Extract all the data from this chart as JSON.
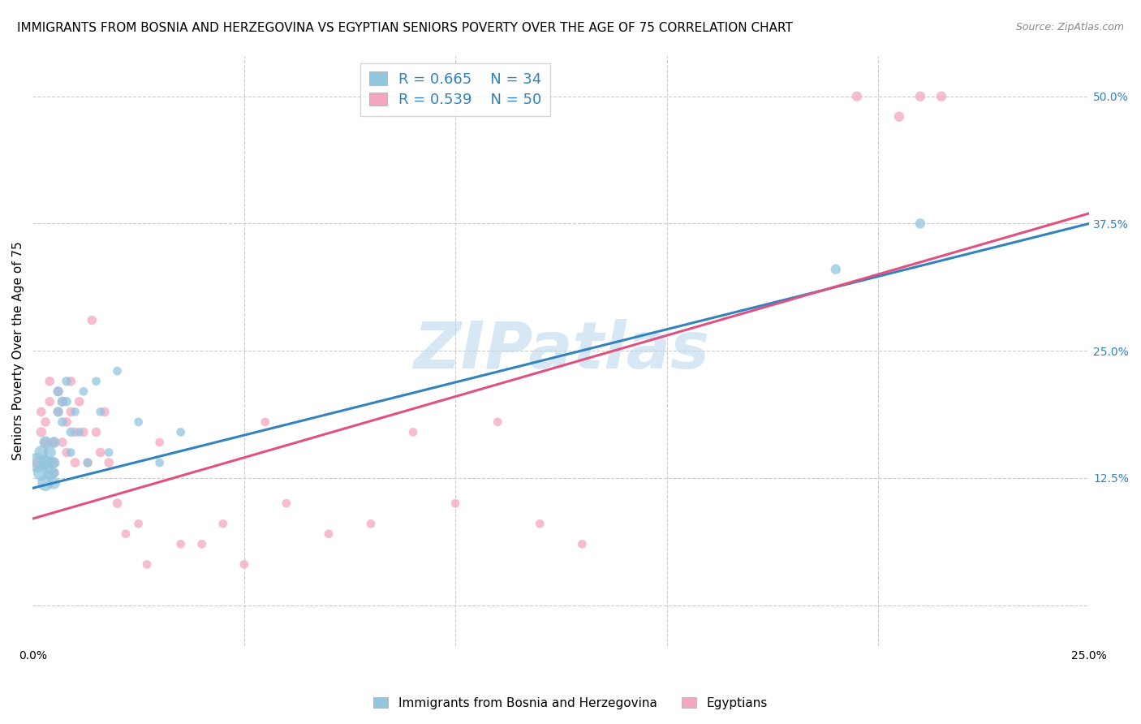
{
  "title": "IMMIGRANTS FROM BOSNIA AND HERZEGOVINA VS EGYPTIAN SENIORS POVERTY OVER THE AGE OF 75 CORRELATION CHART",
  "source": "Source: ZipAtlas.com",
  "ylabel": "Seniors Poverty Over the Age of 75",
  "y_ticks": [
    0.0,
    0.125,
    0.25,
    0.375,
    0.5
  ],
  "y_tick_labels": [
    "",
    "12.5%",
    "25.0%",
    "37.5%",
    "50.0%"
  ],
  "xlim": [
    0.0,
    0.25
  ],
  "ylim": [
    -0.04,
    0.54
  ],
  "blue_color": "#92c5de",
  "pink_color": "#f4a6c0",
  "blue_line_color": "#3182bd",
  "pink_line_color": "#e05080",
  "legend_label1": "Immigrants from Bosnia and Herzegovina",
  "legend_label2": "Egyptians",
  "watermark": "ZIPatlas",
  "blue_scatter_x": [
    0.001,
    0.002,
    0.002,
    0.003,
    0.003,
    0.003,
    0.004,
    0.004,
    0.004,
    0.005,
    0.005,
    0.005,
    0.005,
    0.006,
    0.006,
    0.007,
    0.007,
    0.008,
    0.008,
    0.009,
    0.009,
    0.01,
    0.011,
    0.012,
    0.013,
    0.015,
    0.016,
    0.018,
    0.02,
    0.025,
    0.03,
    0.035,
    0.19,
    0.21
  ],
  "blue_scatter_y": [
    0.14,
    0.13,
    0.15,
    0.12,
    0.14,
    0.16,
    0.13,
    0.15,
    0.14,
    0.12,
    0.14,
    0.16,
    0.13,
    0.21,
    0.19,
    0.2,
    0.18,
    0.2,
    0.22,
    0.17,
    0.15,
    0.19,
    0.17,
    0.21,
    0.14,
    0.22,
    0.19,
    0.15,
    0.23,
    0.18,
    0.14,
    0.17,
    0.33,
    0.375
  ],
  "blue_sizes": [
    300,
    200,
    150,
    200,
    150,
    120,
    150,
    120,
    100,
    120,
    100,
    100,
    80,
    80,
    80,
    80,
    70,
    70,
    70,
    70,
    60,
    60,
    60,
    60,
    60,
    60,
    60,
    60,
    60,
    60,
    60,
    60,
    80,
    80
  ],
  "pink_scatter_x": [
    0.001,
    0.002,
    0.002,
    0.003,
    0.003,
    0.004,
    0.004,
    0.005,
    0.005,
    0.005,
    0.006,
    0.006,
    0.007,
    0.007,
    0.008,
    0.008,
    0.009,
    0.009,
    0.01,
    0.01,
    0.011,
    0.012,
    0.013,
    0.014,
    0.015,
    0.016,
    0.017,
    0.018,
    0.02,
    0.022,
    0.025,
    0.027,
    0.03,
    0.035,
    0.04,
    0.045,
    0.05,
    0.055,
    0.06,
    0.07,
    0.08,
    0.09,
    0.1,
    0.11,
    0.12,
    0.13,
    0.195,
    0.205,
    0.21,
    0.215
  ],
  "pink_scatter_y": [
    0.14,
    0.17,
    0.19,
    0.16,
    0.18,
    0.2,
    0.22,
    0.13,
    0.16,
    0.14,
    0.21,
    0.19,
    0.2,
    0.16,
    0.18,
    0.15,
    0.19,
    0.22,
    0.14,
    0.17,
    0.2,
    0.17,
    0.14,
    0.28,
    0.17,
    0.15,
    0.19,
    0.14,
    0.1,
    0.07,
    0.08,
    0.04,
    0.16,
    0.06,
    0.06,
    0.08,
    0.04,
    0.18,
    0.1,
    0.07,
    0.08,
    0.17,
    0.1,
    0.18,
    0.08,
    0.06,
    0.5,
    0.48,
    0.5,
    0.5
  ],
  "pink_sizes": [
    80,
    80,
    70,
    80,
    70,
    70,
    70,
    80,
    70,
    80,
    70,
    70,
    70,
    70,
    70,
    70,
    70,
    70,
    70,
    70,
    70,
    70,
    70,
    70,
    70,
    70,
    70,
    70,
    70,
    60,
    60,
    60,
    60,
    60,
    60,
    60,
    60,
    60,
    60,
    60,
    60,
    60,
    60,
    60,
    60,
    60,
    80,
    80,
    80,
    80
  ],
  "blue_line_x0": 0.0,
  "blue_line_y0": 0.115,
  "blue_line_x1": 0.25,
  "blue_line_y1": 0.375,
  "pink_line_x0": 0.0,
  "pink_line_y0": 0.085,
  "pink_line_x1": 0.25,
  "pink_line_y1": 0.385,
  "title_fontsize": 11,
  "axis_label_fontsize": 11,
  "tick_fontsize": 10,
  "legend_fontsize": 13
}
